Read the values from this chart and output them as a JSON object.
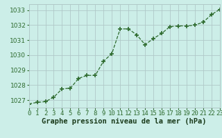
{
  "x": [
    0,
    1,
    2,
    3,
    4,
    5,
    6,
    7,
    8,
    9,
    10,
    11,
    12,
    13,
    14,
    15,
    16,
    17,
    18,
    19,
    20,
    21,
    22,
    23
  ],
  "y": [
    1026.75,
    1026.85,
    1026.9,
    1027.2,
    1027.75,
    1027.8,
    1028.45,
    1028.65,
    1028.65,
    1029.6,
    1030.1,
    1031.75,
    1031.75,
    1031.35,
    1030.7,
    1031.1,
    1031.45,
    1031.9,
    1031.95,
    1031.95,
    1032.0,
    1032.2,
    1032.7,
    1033.05
  ],
  "line_color": "#2d6a2d",
  "marker_color": "#2d6a2d",
  "bg_color": "#cceee8",
  "grid_color": "#b0c8c8",
  "xlabel": "Graphe pression niveau de la mer (hPa)",
  "xlabel_color": "#1a3a1a",
  "ylabel_ticks": [
    1027,
    1028,
    1029,
    1030,
    1031,
    1032,
    1033
  ],
  "xlim": [
    0,
    23
  ],
  "ylim": [
    1026.5,
    1033.4
  ],
  "tick_fontsize": 6.5,
  "xlabel_fontsize": 7.5
}
